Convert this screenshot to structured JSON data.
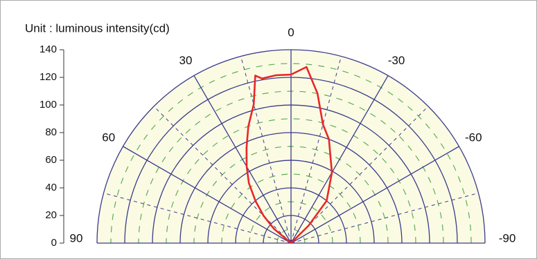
{
  "chart_data": {
    "type": "polar",
    "title": "Unit : luminous intensity(cd)",
    "x": [
      -60,
      -45,
      -40,
      -30,
      -20,
      -15,
      -10,
      -5,
      0,
      5,
      10,
      12,
      15,
      20,
      25,
      30,
      35,
      40,
      45,
      50,
      60
    ],
    "values": [
      0,
      18,
      40,
      59,
      80,
      89,
      110,
      128,
      122,
      122,
      121,
      124,
      104,
      90,
      76,
      64,
      53,
      40,
      28,
      16,
      0
    ],
    "color": "#e8262a",
    "xlim": [
      -90,
      90
    ],
    "xticks": [
      90,
      60,
      30,
      0,
      -30,
      -60,
      -90
    ],
    "ylim": [
      0,
      140
    ],
    "yticks": [
      0,
      20,
      40,
      60,
      80,
      100,
      120,
      140
    ],
    "grid": true,
    "grid_color": "#3a3a8c",
    "minor_grid_color": "#5aad5a",
    "background": "#fbfbe3"
  }
}
